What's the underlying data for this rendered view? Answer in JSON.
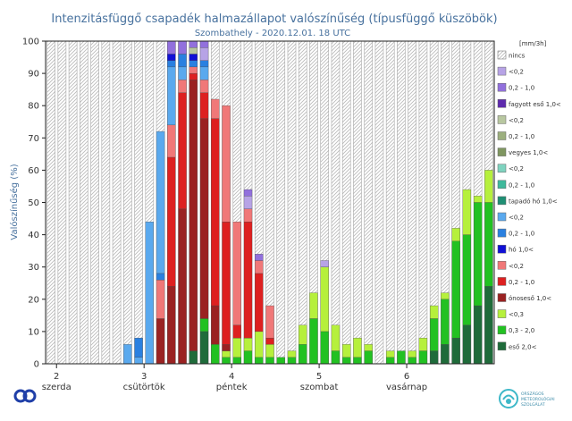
{
  "chart_data": {
    "type": "bar",
    "title": "Intenzitásfüggő csapadék halmazállapot valószínűség (típusfüggő küszöbök)",
    "subtitle": "Szombathely - 2020.12.01. 18 UTC",
    "ylabel": "Valószínűség (%)",
    "xlabel": "",
    "ylim": [
      0,
      100
    ],
    "yticks": [
      0,
      10,
      20,
      30,
      40,
      50,
      60,
      70,
      80,
      90,
      100
    ],
    "grid": true,
    "legend_position": "right",
    "legend_unit": "[mm/3h]",
    "x_ticks": [
      {
        "num": "2",
        "day": "szerda",
        "step": 3
      },
      {
        "num": "3",
        "day": "csütörtök",
        "step": 11
      },
      {
        "num": "4",
        "day": "péntek",
        "step": 19
      },
      {
        "num": "5",
        "day": "szombat",
        "step": 27
      },
      {
        "num": "6",
        "day": "vasárnap",
        "step": 35
      }
    ],
    "num_steps": 41,
    "legend": [
      {
        "label": "nincs",
        "color": "hatch"
      },
      {
        "label": "<0,2",
        "color": "#b7a3e6"
      },
      {
        "label": "0,2 - 1,0",
        "color": "#9270dd"
      },
      {
        "label": "fagyott eső 1,0<",
        "color": "#5e2aad"
      },
      {
        "label": "<0,2",
        "color": "#b8c7a0"
      },
      {
        "label": "0,2 - 1,0",
        "color": "#9caf7e"
      },
      {
        "label": "vegyes 1,0<",
        "color": "#7f9660"
      },
      {
        "label": "<0,2",
        "color": "#7fd3bf"
      },
      {
        "label": "0,2 - 1,0",
        "color": "#3fb99b"
      },
      {
        "label": "tapadó hó 1,0<",
        "color": "#1f8f74"
      },
      {
        "label": "<0,2",
        "color": "#5aa9ee"
      },
      {
        "label": "0,2 - 1,0",
        "color": "#2a80e0"
      },
      {
        "label": "hó 1,0<",
        "color": "#1010d6"
      },
      {
        "label": "<0,2",
        "color": "#f07878"
      },
      {
        "label": "0,2 - 1,0",
        "color": "#dd2020"
      },
      {
        "label": "ónoseső 1,0<",
        "color": "#9a2222"
      },
      {
        "label": "<0,3",
        "color": "#b6f03c"
      },
      {
        "label": "0,3 - 2,0",
        "color": "#22c122"
      },
      {
        "label": "eső 2,0<",
        "color": "#1f6b3a"
      }
    ],
    "series_colors": {
      "snow_lt02": "#5aa9ee",
      "snow_02_1": "#2a80e0",
      "snow_gt1": "#1010d6",
      "frz_lt02": "#f07878",
      "frz_02_1": "#dd2020",
      "frz_gt1": "#9a2222",
      "ice_lt02": "#b7a3e6",
      "ice_02_1": "#9270dd",
      "ice_gt1": "#5e2aad",
      "mix_lt02": "#b8c7a0",
      "rain_lt03": "#b6f03c",
      "rain_03_2": "#22c122",
      "rain_gt2": "#1f6b3a"
    },
    "bars": [
      {
        "step": 9,
        "segments": [
          {
            "s": "snow_lt02",
            "v": 6
          }
        ]
      },
      {
        "step": 10,
        "segments": [
          {
            "s": "snow_lt02",
            "v": 2
          },
          {
            "s": "snow_02_1",
            "v": 6
          }
        ]
      },
      {
        "step": 11,
        "segments": [
          {
            "s": "snow_lt02",
            "v": 44
          }
        ]
      },
      {
        "step": 12,
        "segments": [
          {
            "s": "frz_gt1",
            "v": 14
          },
          {
            "s": "frz_lt02",
            "v": 12
          },
          {
            "s": "snow_02_1",
            "v": 2
          },
          {
            "s": "snow_lt02",
            "v": 44
          }
        ]
      },
      {
        "step": 13,
        "segments": [
          {
            "s": "frz_gt1",
            "v": 24
          },
          {
            "s": "frz_02_1",
            "v": 40
          },
          {
            "s": "frz_lt02",
            "v": 10
          },
          {
            "s": "snow_lt02",
            "v": 18
          },
          {
            "s": "snow_02_1",
            "v": 2
          },
          {
            "s": "snow_gt1",
            "v": 2
          },
          {
            "s": "ice_02_1",
            "v": 4
          }
        ]
      },
      {
        "step": 14,
        "segments": [
          {
            "s": "frz_gt1",
            "v": 48
          },
          {
            "s": "frz_02_1",
            "v": 36
          },
          {
            "s": "frz_lt02",
            "v": 4
          },
          {
            "s": "snow_lt02",
            "v": 4
          },
          {
            "s": "snow_02_1",
            "v": 4
          },
          {
            "s": "ice_02_1",
            "v": 4
          }
        ]
      },
      {
        "step": 15,
        "segments": [
          {
            "s": "rain_gt2",
            "v": 4
          },
          {
            "s": "frz_gt1",
            "v": 84
          },
          {
            "s": "frz_02_1",
            "v": 2
          },
          {
            "s": "frz_lt02",
            "v": 2
          },
          {
            "s": "snow_02_1",
            "v": 2
          },
          {
            "s": "snow_gt1",
            "v": 2
          },
          {
            "s": "mix_lt02",
            "v": 2
          },
          {
            "s": "ice_02_1",
            "v": 2
          }
        ]
      },
      {
        "step": 16,
        "segments": [
          {
            "s": "rain_gt2",
            "v": 10
          },
          {
            "s": "rain_03_2",
            "v": 4
          },
          {
            "s": "frz_gt1",
            "v": 62
          },
          {
            "s": "frz_02_1",
            "v": 8
          },
          {
            "s": "frz_lt02",
            "v": 4
          },
          {
            "s": "snow_lt02",
            "v": 4
          },
          {
            "s": "snow_02_1",
            "v": 2
          },
          {
            "s": "ice_lt02",
            "v": 4
          },
          {
            "s": "ice_02_1",
            "v": 2
          }
        ]
      },
      {
        "step": 17,
        "segments": [
          {
            "s": "rain_03_2",
            "v": 6
          },
          {
            "s": "frz_gt1",
            "v": 12
          },
          {
            "s": "frz_02_1",
            "v": 58
          },
          {
            "s": "frz_lt02",
            "v": 6
          }
        ]
      },
      {
        "step": 18,
        "segments": [
          {
            "s": "rain_03_2",
            "v": 2
          },
          {
            "s": "rain_lt03",
            "v": 2
          },
          {
            "s": "frz_gt1",
            "v": 2
          },
          {
            "s": "frz_02_1",
            "v": 38
          },
          {
            "s": "frz_lt02",
            "v": 36
          }
        ]
      },
      {
        "step": 19,
        "segments": [
          {
            "s": "rain_03_2",
            "v": 2
          },
          {
            "s": "rain_lt03",
            "v": 6
          },
          {
            "s": "frz_02_1",
            "v": 4
          },
          {
            "s": "frz_lt02",
            "v": 32
          }
        ]
      },
      {
        "step": 20,
        "segments": [
          {
            "s": "rain_03_2",
            "v": 4
          },
          {
            "s": "rain_lt03",
            "v": 4
          },
          {
            "s": "frz_02_1",
            "v": 36
          },
          {
            "s": "frz_lt02",
            "v": 4
          },
          {
            "s": "ice_lt02",
            "v": 4
          },
          {
            "s": "ice_02_1",
            "v": 2
          }
        ]
      },
      {
        "step": 21,
        "segments": [
          {
            "s": "rain_03_2",
            "v": 2
          },
          {
            "s": "rain_lt03",
            "v": 8
          },
          {
            "s": "frz_02_1",
            "v": 18
          },
          {
            "s": "frz_lt02",
            "v": 4
          },
          {
            "s": "ice_02_1",
            "v": 2
          }
        ]
      },
      {
        "step": 22,
        "segments": [
          {
            "s": "rain_03_2",
            "v": 2
          },
          {
            "s": "rain_lt03",
            "v": 4
          },
          {
            "s": "frz_02_1",
            "v": 2
          },
          {
            "s": "frz_lt02",
            "v": 10
          }
        ]
      },
      {
        "step": 23,
        "segments": [
          {
            "s": "rain_03_2",
            "v": 2
          }
        ]
      },
      {
        "step": 24,
        "segments": [
          {
            "s": "rain_03_2",
            "v": 2
          },
          {
            "s": "rain_lt03",
            "v": 2
          }
        ]
      },
      {
        "step": 25,
        "segments": [
          {
            "s": "rain_03_2",
            "v": 6
          },
          {
            "s": "rain_lt03",
            "v": 6
          }
        ]
      },
      {
        "step": 26,
        "segments": [
          {
            "s": "rain_03_2",
            "v": 14
          },
          {
            "s": "rain_lt03",
            "v": 8
          }
        ]
      },
      {
        "step": 27,
        "segments": [
          {
            "s": "rain_03_2",
            "v": 10
          },
          {
            "s": "rain_lt03",
            "v": 20
          },
          {
            "s": "ice_lt02",
            "v": 2
          }
        ]
      },
      {
        "step": 28,
        "segments": [
          {
            "s": "rain_03_2",
            "v": 4
          },
          {
            "s": "rain_lt03",
            "v": 8
          }
        ]
      },
      {
        "step": 29,
        "segments": [
          {
            "s": "rain_03_2",
            "v": 2
          },
          {
            "s": "rain_lt03",
            "v": 4
          }
        ]
      },
      {
        "step": 30,
        "segments": [
          {
            "s": "rain_03_2",
            "v": 2
          },
          {
            "s": "rain_lt03",
            "v": 6
          }
        ]
      },
      {
        "step": 31,
        "segments": [
          {
            "s": "rain_03_2",
            "v": 4
          },
          {
            "s": "rain_lt03",
            "v": 2
          }
        ]
      },
      {
        "step": 33,
        "segments": [
          {
            "s": "rain_03_2",
            "v": 2
          },
          {
            "s": "rain_lt03",
            "v": 2
          }
        ]
      },
      {
        "step": 34,
        "segments": [
          {
            "s": "rain_03_2",
            "v": 4
          }
        ]
      },
      {
        "step": 35,
        "segments": [
          {
            "s": "rain_03_2",
            "v": 2
          },
          {
            "s": "rain_lt03",
            "v": 2
          }
        ]
      },
      {
        "step": 36,
        "segments": [
          {
            "s": "rain_03_2",
            "v": 4
          },
          {
            "s": "rain_lt03",
            "v": 4
          }
        ]
      },
      {
        "step": 37,
        "segments": [
          {
            "s": "rain_gt2",
            "v": 4
          },
          {
            "s": "rain_03_2",
            "v": 10
          },
          {
            "s": "rain_lt03",
            "v": 4
          }
        ]
      },
      {
        "step": 38,
        "segments": [
          {
            "s": "rain_gt2",
            "v": 6
          },
          {
            "s": "rain_03_2",
            "v": 14
          },
          {
            "s": "rain_lt03",
            "v": 2
          }
        ]
      },
      {
        "step": 39,
        "segments": [
          {
            "s": "rain_gt2",
            "v": 8
          },
          {
            "s": "rain_03_2",
            "v": 30
          },
          {
            "s": "rain_lt03",
            "v": 4
          }
        ]
      },
      {
        "step": 40,
        "segments": [
          {
            "s": "rain_gt2",
            "v": 12
          },
          {
            "s": "rain_03_2",
            "v": 28
          },
          {
            "s": "rain_lt03",
            "v": 14
          }
        ]
      },
      {
        "step": 41,
        "segments": [
          {
            "s": "rain_gt2",
            "v": 18
          },
          {
            "s": "rain_03_2",
            "v": 32
          },
          {
            "s": "rain_lt03",
            "v": 2
          }
        ]
      },
      {
        "step": 42,
        "segments": [
          {
            "s": "rain_gt2",
            "v": 24
          },
          {
            "s": "rain_03_2",
            "v": 26
          },
          {
            "s": "rain_lt03",
            "v": 10
          }
        ]
      }
    ]
  }
}
